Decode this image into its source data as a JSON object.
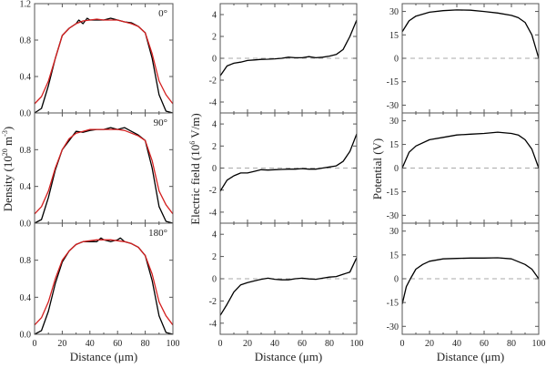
{
  "chart_data": {
    "type": "line",
    "layout": "3 columns x 3 rows of panels sharing x axis",
    "colors": {
      "simulation": "#000000",
      "fit": "#d42020",
      "zero_line": "#aaaaaa",
      "axis": "#555555"
    },
    "xlabel": "Distance (μm)",
    "xlim": [
      0,
      100
    ],
    "xticks": [
      "0",
      "20",
      "40",
      "60",
      "80",
      "100"
    ],
    "row_labels": [
      "0°",
      "90°",
      "180°"
    ],
    "columns": [
      {
        "name": "density",
        "ylabel_parts": [
          [
            "Density (10",
            ""
          ],
          [
            "20",
            "sup"
          ],
          [
            " m",
            ""
          ],
          [
            "-3",
            "sup"
          ],
          [
            ")",
            ""
          ]
        ],
        "ylim": [
          0,
          1.2
        ],
        "yticks": [
          "0.0",
          "0.4",
          "0.8",
          "1.2"
        ],
        "zero_line": false,
        "panels": [
          {
            "series": [
              {
                "name": "black",
                "x": [
                  0,
                  5,
                  10,
                  15,
                  20,
                  25,
                  30,
                  32,
                  35,
                  38,
                  40,
                  45,
                  50,
                  55,
                  60,
                  65,
                  70,
                  75,
                  80,
                  85,
                  90,
                  95,
                  100
                ],
                "y": [
                  0,
                  0.05,
                  0.3,
                  0.6,
                  0.85,
                  0.93,
                  0.98,
                  1.02,
                  0.98,
                  1.04,
                  1.02,
                  1.02,
                  1.02,
                  1.04,
                  1.02,
                  1.0,
                  0.99,
                  0.95,
                  0.88,
                  0.6,
                  0.2,
                  0.02,
                  0
                ]
              },
              {
                "name": "red",
                "x": [
                  0,
                  5,
                  10,
                  15,
                  20,
                  25,
                  30,
                  35,
                  40,
                  45,
                  50,
                  55,
                  60,
                  65,
                  70,
                  75,
                  80,
                  85,
                  90,
                  95,
                  100
                ],
                "y": [
                  0.1,
                  0.18,
                  0.35,
                  0.6,
                  0.85,
                  0.93,
                  0.98,
                  1.01,
                  1.02,
                  1.03,
                  1.02,
                  1.02,
                  1.02,
                  1.0,
                  0.98,
                  0.95,
                  0.88,
                  0.65,
                  0.35,
                  0.2,
                  0.1
                ]
              }
            ]
          },
          {
            "series": [
              {
                "name": "black",
                "x": [
                  0,
                  5,
                  10,
                  15,
                  20,
                  25,
                  30,
                  35,
                  40,
                  45,
                  50,
                  55,
                  60,
                  65,
                  70,
                  75,
                  80,
                  85,
                  90,
                  95,
                  100
                ],
                "y": [
                  0,
                  0.04,
                  0.28,
                  0.58,
                  0.8,
                  0.9,
                  1.0,
                  0.99,
                  1.01,
                  1.02,
                  1.02,
                  1.04,
                  1.02,
                  1.04,
                  1.0,
                  0.96,
                  0.9,
                  0.6,
                  0.18,
                  0.02,
                  0
                ]
              },
              {
                "name": "red",
                "x": [
                  0,
                  5,
                  10,
                  15,
                  20,
                  25,
                  30,
                  35,
                  40,
                  45,
                  50,
                  55,
                  60,
                  65,
                  70,
                  75,
                  80,
                  85,
                  90,
                  95,
                  100
                ],
                "y": [
                  0.1,
                  0.18,
                  0.35,
                  0.6,
                  0.8,
                  0.92,
                  0.98,
                  1.0,
                  1.02,
                  1.02,
                  1.02,
                  1.02,
                  1.02,
                  1.01,
                  0.98,
                  0.95,
                  0.9,
                  0.68,
                  0.35,
                  0.2,
                  0.1
                ]
              }
            ]
          },
          {
            "series": [
              {
                "name": "black",
                "x": [
                  0,
                  5,
                  10,
                  15,
                  20,
                  25,
                  30,
                  35,
                  40,
                  45,
                  48,
                  50,
                  55,
                  60,
                  62,
                  65,
                  70,
                  75,
                  80,
                  85,
                  90,
                  95,
                  100
                ],
                "y": [
                  0,
                  0.04,
                  0.25,
                  0.55,
                  0.78,
                  0.9,
                  0.97,
                  1.0,
                  1.0,
                  1.0,
                  1.04,
                  1.02,
                  1.0,
                  1.02,
                  1.04,
                  1.0,
                  0.98,
                  0.94,
                  0.85,
                  0.58,
                  0.2,
                  0.02,
                  0
                ]
              },
              {
                "name": "red",
                "x": [
                  0,
                  5,
                  10,
                  15,
                  20,
                  25,
                  30,
                  35,
                  40,
                  45,
                  50,
                  55,
                  60,
                  65,
                  70,
                  75,
                  80,
                  85,
                  90,
                  95,
                  100
                ],
                "y": [
                  0.1,
                  0.18,
                  0.35,
                  0.6,
                  0.8,
                  0.9,
                  0.97,
                  1.0,
                  1.01,
                  1.02,
                  1.02,
                  1.02,
                  1.01,
                  1.0,
                  0.98,
                  0.94,
                  0.85,
                  0.65,
                  0.35,
                  0.2,
                  0.1
                ]
              }
            ]
          }
        ]
      },
      {
        "name": "electric-field",
        "ylabel_parts": [
          [
            "Electric field (10",
            ""
          ],
          [
            "6",
            "sup"
          ],
          [
            " V/m)",
            ""
          ]
        ],
        "ylim": [
          -5,
          5
        ],
        "yticks": [
          "-4",
          "-2",
          "0",
          "2",
          "4"
        ],
        "zero_line": true,
        "panels": [
          {
            "series": [
              {
                "name": "black",
                "x": [
                  0,
                  5,
                  10,
                  15,
                  20,
                  25,
                  30,
                  35,
                  40,
                  45,
                  50,
                  55,
                  60,
                  65,
                  70,
                  75,
                  80,
                  85,
                  90,
                  95,
                  100
                ],
                "y": [
                  -1.6,
                  -0.7,
                  -0.45,
                  -0.35,
                  -0.2,
                  -0.15,
                  -0.1,
                  -0.08,
                  -0.05,
                  0,
                  0.1,
                  0.05,
                  0.05,
                  0.15,
                  0.05,
                  0.1,
                  0.2,
                  0.35,
                  0.8,
                  2.0,
                  3.5
                ]
              }
            ]
          },
          {
            "series": [
              {
                "name": "black",
                "x": [
                  0,
                  5,
                  10,
                  15,
                  20,
                  25,
                  30,
                  35,
                  40,
                  45,
                  50,
                  55,
                  60,
                  65,
                  70,
                  75,
                  80,
                  85,
                  90,
                  95,
                  100
                ],
                "y": [
                  -2.1,
                  -1.1,
                  -0.7,
                  -0.45,
                  -0.45,
                  -0.3,
                  -0.15,
                  -0.18,
                  -0.15,
                  -0.12,
                  -0.1,
                  -0.1,
                  -0.05,
                  -0.1,
                  -0.1,
                  0,
                  0.1,
                  0.2,
                  0.6,
                  1.5,
                  3.1
                ]
              }
            ]
          },
          {
            "series": [
              {
                "name": "black",
                "x": [
                  0,
                  5,
                  10,
                  15,
                  20,
                  25,
                  30,
                  35,
                  40,
                  45,
                  50,
                  55,
                  60,
                  65,
                  70,
                  75,
                  80,
                  85,
                  90,
                  95,
                  100
                ],
                "y": [
                  -3.3,
                  -2.3,
                  -1.2,
                  -0.55,
                  -0.35,
                  -0.2,
                  -0.05,
                  0.05,
                  -0.05,
                  -0.1,
                  -0.1,
                  0,
                  0.05,
                  -0.02,
                  -0.05,
                  0.05,
                  0.15,
                  0.2,
                  0.4,
                  0.6,
                  1.9
                ]
              }
            ]
          }
        ]
      },
      {
        "name": "potential",
        "ylabel_parts": [
          [
            "Potential (V)",
            ""
          ]
        ],
        "ylim": [
          -35,
          35
        ],
        "yticks": [
          "-30",
          "-15",
          "0",
          "15",
          "30"
        ],
        "zero_line": true,
        "panels": [
          {
            "series": [
              {
                "name": "black",
                "x": [
                  0,
                  5,
                  10,
                  20,
                  30,
                  40,
                  50,
                  60,
                  70,
                  80,
                  85,
                  90,
                  95,
                  100
                ],
                "y": [
                  17,
                  24,
                  27,
                  29.5,
                  30.5,
                  31,
                  30.8,
                  30,
                  29,
                  27.5,
                  26,
                  23,
                  15,
                  0
                ]
              }
            ]
          },
          {
            "series": [
              {
                "name": "black",
                "x": [
                  0,
                  5,
                  10,
                  20,
                  30,
                  40,
                  50,
                  60,
                  70,
                  80,
                  85,
                  90,
                  95,
                  100
                ],
                "y": [
                  0,
                  10,
                  14,
                  18,
                  19.5,
                  21,
                  21.5,
                  22,
                  22.8,
                  22,
                  21,
                  18,
                  12,
                  0
                ]
              }
            ]
          },
          {
            "series": [
              {
                "name": "black",
                "x": [
                  0,
                  3,
                  6,
                  10,
                  15,
                  20,
                  30,
                  40,
                  50,
                  60,
                  70,
                  80,
                  90,
                  95,
                  100
                ],
                "y": [
                  -16,
                  -5,
                  0,
                  6,
                  9,
                  11,
                  12.5,
                  12.8,
                  13,
                  13,
                  13.2,
                  12.5,
                  9,
                  6,
                  0
                ]
              }
            ]
          }
        ]
      }
    ]
  }
}
